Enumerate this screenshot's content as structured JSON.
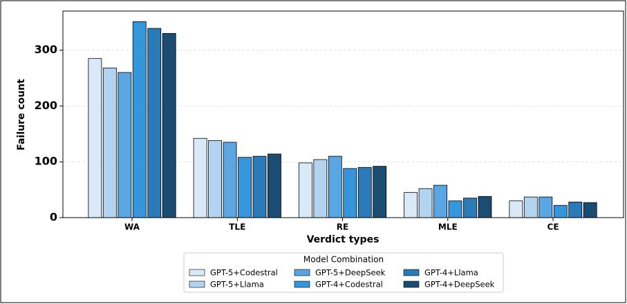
{
  "chart_data": {
    "type": "bar",
    "xlabel": "Verdict types",
    "ylabel": "Failure count",
    "categories": [
      "WA",
      "TLE",
      "RE",
      "MLE",
      "CE"
    ],
    "series": [
      {
        "name": "GPT-5+Codestral",
        "color": "#d9e9f7",
        "values": [
          285,
          142,
          98,
          45,
          30
        ]
      },
      {
        "name": "GPT-5+Llama",
        "color": "#b2d4f0",
        "values": [
          268,
          138,
          104,
          52,
          37
        ]
      },
      {
        "name": "GPT-5+DeepSeek",
        "color": "#5aa6e2",
        "values": [
          260,
          135,
          110,
          58,
          37
        ]
      },
      {
        "name": "GPT-4+Codestral",
        "color": "#3596db",
        "values": [
          351,
          108,
          88,
          30,
          22
        ]
      },
      {
        "name": "GPT-4+Llama",
        "color": "#2a7ab8",
        "values": [
          339,
          110,
          90,
          35,
          28
        ]
      },
      {
        "name": "GPT-4+DeepSeek",
        "color": "#1b4c72",
        "values": [
          330,
          114,
          92,
          38,
          27
        ]
      }
    ],
    "ylim": [
      0,
      370
    ],
    "yticks": [
      0,
      100,
      200,
      300
    ],
    "grid": true,
    "legend_title": "Model Combination",
    "legend": "lower center"
  }
}
